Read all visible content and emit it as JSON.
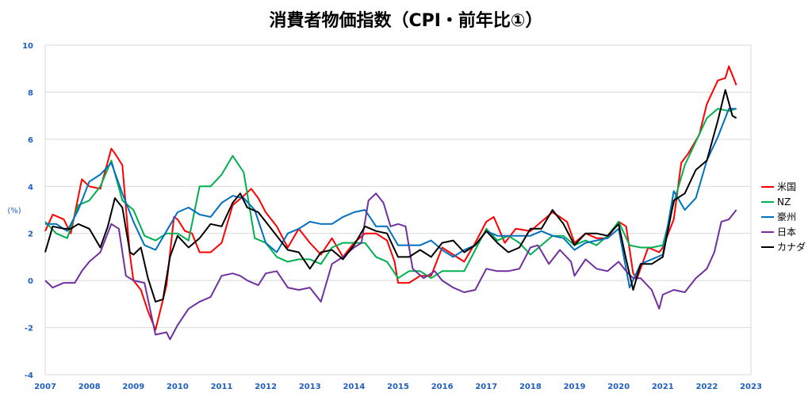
{
  "chart_data": {
    "type": "line",
    "title": "消費者物価指数（CPI・前年比①）",
    "ylabel": "(%)",
    "xlabel": "",
    "ylim": [
      -4,
      10
    ],
    "xlim": [
      2007,
      2023
    ],
    "y_ticks": [
      "10",
      "8",
      "6",
      "4",
      "2",
      "0",
      "-2",
      "-4"
    ],
    "x_ticks": [
      "2007",
      "2008",
      "2009",
      "2010",
      "2011",
      "2012",
      "2013",
      "2014",
      "2015",
      "2016",
      "2017",
      "2018",
      "2019",
      "2020",
      "2021",
      "2022",
      "2023"
    ],
    "grid": true,
    "legend_position": "right",
    "series": [
      {
        "name": "米国",
        "color": "#ff0000",
        "x": [
          2007.0,
          2007.17,
          2007.42,
          2007.58,
          2007.83,
          2008.0,
          2008.25,
          2008.5,
          2008.58,
          2008.75,
          2008.92,
          2009.0,
          2009.17,
          2009.33,
          2009.5,
          2009.58,
          2009.75,
          2009.92,
          2010.0,
          2010.17,
          2010.33,
          2010.5,
          2010.75,
          2011.0,
          2011.25,
          2011.5,
          2011.67,
          2011.83,
          2012.0,
          2012.25,
          2012.5,
          2012.75,
          2013.0,
          2013.25,
          2013.5,
          2013.75,
          2014.0,
          2014.25,
          2014.5,
          2014.75,
          2014.92,
          2015.0,
          2015.25,
          2015.5,
          2015.75,
          2016.0,
          2016.25,
          2016.5,
          2016.75,
          2017.0,
          2017.17,
          2017.42,
          2017.67,
          2018.0,
          2018.25,
          2018.5,
          2018.67,
          2018.83,
          2019.0,
          2019.25,
          2019.5,
          2019.75,
          2020.0,
          2020.17,
          2020.33,
          2020.42,
          2020.67,
          2020.92,
          2021.0,
          2021.25,
          2021.42,
          2021.58,
          2021.83,
          2022.0,
          2022.25,
          2022.42,
          2022.5,
          2022.67
        ],
        "values": [
          2.1,
          2.8,
          2.6,
          2.0,
          4.3,
          4.0,
          3.9,
          5.6,
          5.4,
          4.9,
          1.1,
          0.0,
          -0.4,
          -1.3,
          -2.1,
          -1.5,
          -0.2,
          2.7,
          2.6,
          2.1,
          2.0,
          1.2,
          1.2,
          1.6,
          3.2,
          3.6,
          3.9,
          3.5,
          2.9,
          2.3,
          1.4,
          2.2,
          1.6,
          1.1,
          1.8,
          1.0,
          1.6,
          2.0,
          2.0,
          1.7,
          0.8,
          -0.1,
          -0.1,
          0.2,
          0.2,
          1.4,
          1.1,
          0.8,
          1.6,
          2.5,
          2.7,
          1.6,
          2.2,
          2.1,
          2.5,
          2.9,
          2.7,
          2.5,
          1.6,
          2.0,
          1.8,
          1.8,
          2.5,
          2.3,
          0.3,
          0.1,
          1.4,
          1.2,
          1.4,
          2.6,
          5.0,
          5.4,
          6.2,
          7.5,
          8.5,
          8.6,
          9.1,
          8.3
        ]
      },
      {
        "name": "NZ",
        "color": "#00b050",
        "x": [
          2007.0,
          2007.25,
          2007.5,
          2007.75,
          2008.0,
          2008.25,
          2008.5,
          2008.75,
          2009.0,
          2009.25,
          2009.5,
          2009.75,
          2010.0,
          2010.25,
          2010.5,
          2010.75,
          2011.0,
          2011.25,
          2011.5,
          2011.75,
          2012.0,
          2012.25,
          2012.5,
          2012.75,
          2013.0,
          2013.25,
          2013.5,
          2013.75,
          2014.0,
          2014.25,
          2014.5,
          2014.75,
          2015.0,
          2015.25,
          2015.5,
          2015.75,
          2016.0,
          2016.25,
          2016.5,
          2016.75,
          2017.0,
          2017.25,
          2017.5,
          2017.75,
          2018.0,
          2018.25,
          2018.5,
          2018.75,
          2019.0,
          2019.25,
          2019.5,
          2019.75,
          2020.0,
          2020.25,
          2020.5,
          2020.75,
          2021.0,
          2021.25,
          2021.5,
          2021.75,
          2022.0,
          2022.25,
          2022.5,
          2022.67
        ],
        "values": [
          2.5,
          2.0,
          1.8,
          3.2,
          3.4,
          4.0,
          5.1,
          3.4,
          3.0,
          1.9,
          1.7,
          2.0,
          2.0,
          1.7,
          4.0,
          4.0,
          4.5,
          5.3,
          4.6,
          1.8,
          1.6,
          1.0,
          0.8,
          0.9,
          0.9,
          0.7,
          1.4,
          1.6,
          1.6,
          1.6,
          1.0,
          0.8,
          0.1,
          0.4,
          0.4,
          0.1,
          0.4,
          0.4,
          0.4,
          1.3,
          2.2,
          1.7,
          1.9,
          1.6,
          1.1,
          1.5,
          1.9,
          1.9,
          1.5,
          1.7,
          1.5,
          1.9,
          2.5,
          1.5,
          1.4,
          1.4,
          1.5,
          3.3,
          4.9,
          5.9,
          6.9,
          7.3,
          7.2,
          7.3
        ]
      },
      {
        "name": "豪州",
        "color": "#0070c0",
        "x": [
          2007.0,
          2007.25,
          2007.5,
          2007.75,
          2008.0,
          2008.25,
          2008.5,
          2008.75,
          2009.0,
          2009.25,
          2009.5,
          2009.75,
          2010.0,
          2010.25,
          2010.5,
          2010.75,
          2011.0,
          2011.25,
          2011.5,
          2011.75,
          2012.0,
          2012.25,
          2012.5,
          2012.75,
          2013.0,
          2013.25,
          2013.5,
          2013.75,
          2014.0,
          2014.25,
          2014.5,
          2014.75,
          2015.0,
          2015.25,
          2015.5,
          2015.75,
          2016.0,
          2016.25,
          2016.5,
          2016.75,
          2017.0,
          2017.25,
          2017.5,
          2017.75,
          2018.0,
          2018.25,
          2018.5,
          2018.75,
          2019.0,
          2019.25,
          2019.5,
          2019.75,
          2020.0,
          2020.25,
          2020.5,
          2020.75,
          2021.0,
          2021.25,
          2021.5,
          2021.75,
          2022.0,
          2022.25,
          2022.5,
          2022.67
        ],
        "values": [
          2.4,
          2.4,
          2.1,
          3.0,
          4.2,
          4.5,
          5.0,
          3.7,
          2.5,
          1.5,
          1.3,
          2.1,
          2.9,
          3.1,
          2.8,
          2.7,
          3.3,
          3.6,
          3.5,
          3.0,
          1.6,
          1.2,
          2.0,
          2.2,
          2.5,
          2.4,
          2.4,
          2.7,
          2.9,
          3.0,
          2.3,
          2.3,
          1.5,
          1.5,
          1.5,
          1.7,
          1.3,
          1.0,
          1.3,
          1.5,
          2.1,
          1.9,
          1.9,
          1.9,
          1.9,
          2.1,
          1.9,
          1.8,
          1.3,
          1.6,
          1.7,
          1.8,
          2.2,
          -0.3,
          0.7,
          0.9,
          1.1,
          3.8,
          3.0,
          3.5,
          5.1,
          6.1,
          7.3,
          7.3
        ]
      },
      {
        "name": "日本",
        "color": "#7030a0",
        "x": [
          2007.0,
          2007.17,
          2007.42,
          2007.67,
          2007.83,
          2008.0,
          2008.25,
          2008.5,
          2008.67,
          2008.83,
          2009.0,
          2009.25,
          2009.5,
          2009.75,
          2009.83,
          2010.0,
          2010.25,
          2010.5,
          2010.75,
          2011.0,
          2011.25,
          2011.42,
          2011.58,
          2011.83,
          2012.0,
          2012.25,
          2012.5,
          2012.75,
          2013.0,
          2013.25,
          2013.5,
          2013.75,
          2014.0,
          2014.17,
          2014.33,
          2014.5,
          2014.67,
          2014.83,
          2015.0,
          2015.17,
          2015.33,
          2015.58,
          2015.83,
          2016.0,
          2016.25,
          2016.5,
          2016.75,
          2017.0,
          2017.25,
          2017.5,
          2017.75,
          2018.0,
          2018.17,
          2018.42,
          2018.67,
          2018.92,
          2019.0,
          2019.25,
          2019.5,
          2019.75,
          2020.0,
          2020.17,
          2020.33,
          2020.5,
          2020.75,
          2020.92,
          2021.0,
          2021.25,
          2021.5,
          2021.75,
          2022.0,
          2022.17,
          2022.33,
          2022.5,
          2022.67
        ],
        "values": [
          0.0,
          -0.3,
          -0.1,
          -0.1,
          0.4,
          0.8,
          1.2,
          2.4,
          2.2,
          0.2,
          0.0,
          -0.1,
          -2.3,
          -2.2,
          -2.5,
          -1.9,
          -1.2,
          -0.9,
          -0.7,
          0.2,
          0.3,
          0.2,
          0.0,
          -0.2,
          0.3,
          0.4,
          -0.3,
          -0.4,
          -0.3,
          -0.9,
          0.7,
          1.0,
          1.4,
          1.6,
          3.4,
          3.7,
          3.3,
          2.3,
          2.4,
          2.3,
          0.5,
          0.1,
          0.4,
          0.0,
          -0.3,
          -0.5,
          -0.4,
          0.5,
          0.4,
          0.4,
          0.5,
          1.4,
          1.5,
          0.7,
          1.3,
          0.8,
          0.2,
          0.9,
          0.5,
          0.4,
          0.8,
          0.4,
          0.1,
          0.1,
          -0.4,
          -1.2,
          -0.6,
          -0.4,
          -0.5,
          0.1,
          0.5,
          1.2,
          2.5,
          2.6,
          3.0
        ]
      },
      {
        "name": "カナダ",
        "color": "#000000",
        "x": [
          2007.0,
          2007.17,
          2007.42,
          2007.58,
          2007.75,
          2008.0,
          2008.25,
          2008.42,
          2008.58,
          2008.75,
          2008.92,
          2009.0,
          2009.17,
          2009.33,
          2009.5,
          2009.67,
          2009.83,
          2010.0,
          2010.25,
          2010.5,
          2010.75,
          2011.0,
          2011.25,
          2011.42,
          2011.58,
          2011.83,
          2012.0,
          2012.25,
          2012.5,
          2012.75,
          2013.0,
          2013.25,
          2013.5,
          2013.75,
          2014.0,
          2014.25,
          2014.5,
          2014.75,
          2015.0,
          2015.25,
          2015.5,
          2015.75,
          2016.0,
          2016.25,
          2016.5,
          2016.75,
          2017.0,
          2017.25,
          2017.5,
          2017.75,
          2018.0,
          2018.25,
          2018.5,
          2018.75,
          2019.0,
          2019.25,
          2019.5,
          2019.75,
          2020.0,
          2020.17,
          2020.33,
          2020.5,
          2020.75,
          2021.0,
          2021.25,
          2021.5,
          2021.75,
          2022.0,
          2022.25,
          2022.42,
          2022.58,
          2022.67
        ],
        "values": [
          1.2,
          2.3,
          2.2,
          2.2,
          2.4,
          2.2,
          1.4,
          2.3,
          3.5,
          3.1,
          1.2,
          1.1,
          1.4,
          0.1,
          -0.9,
          -0.8,
          1.0,
          1.9,
          1.4,
          1.8,
          2.4,
          2.3,
          3.3,
          3.7,
          3.1,
          2.9,
          2.5,
          1.9,
          1.3,
          1.2,
          0.5,
          1.2,
          1.3,
          0.9,
          1.5,
          2.3,
          2.1,
          2.0,
          1.0,
          1.0,
          1.3,
          1.0,
          1.6,
          1.7,
          1.2,
          1.5,
          2.1,
          1.6,
          1.2,
          1.4,
          2.2,
          2.2,
          3.0,
          2.4,
          1.5,
          2.0,
          2.0,
          1.9,
          2.4,
          0.9,
          -0.4,
          0.7,
          0.7,
          1.0,
          3.4,
          3.7,
          4.7,
          5.1,
          6.8,
          8.1,
          7.0,
          6.9
        ]
      }
    ]
  }
}
